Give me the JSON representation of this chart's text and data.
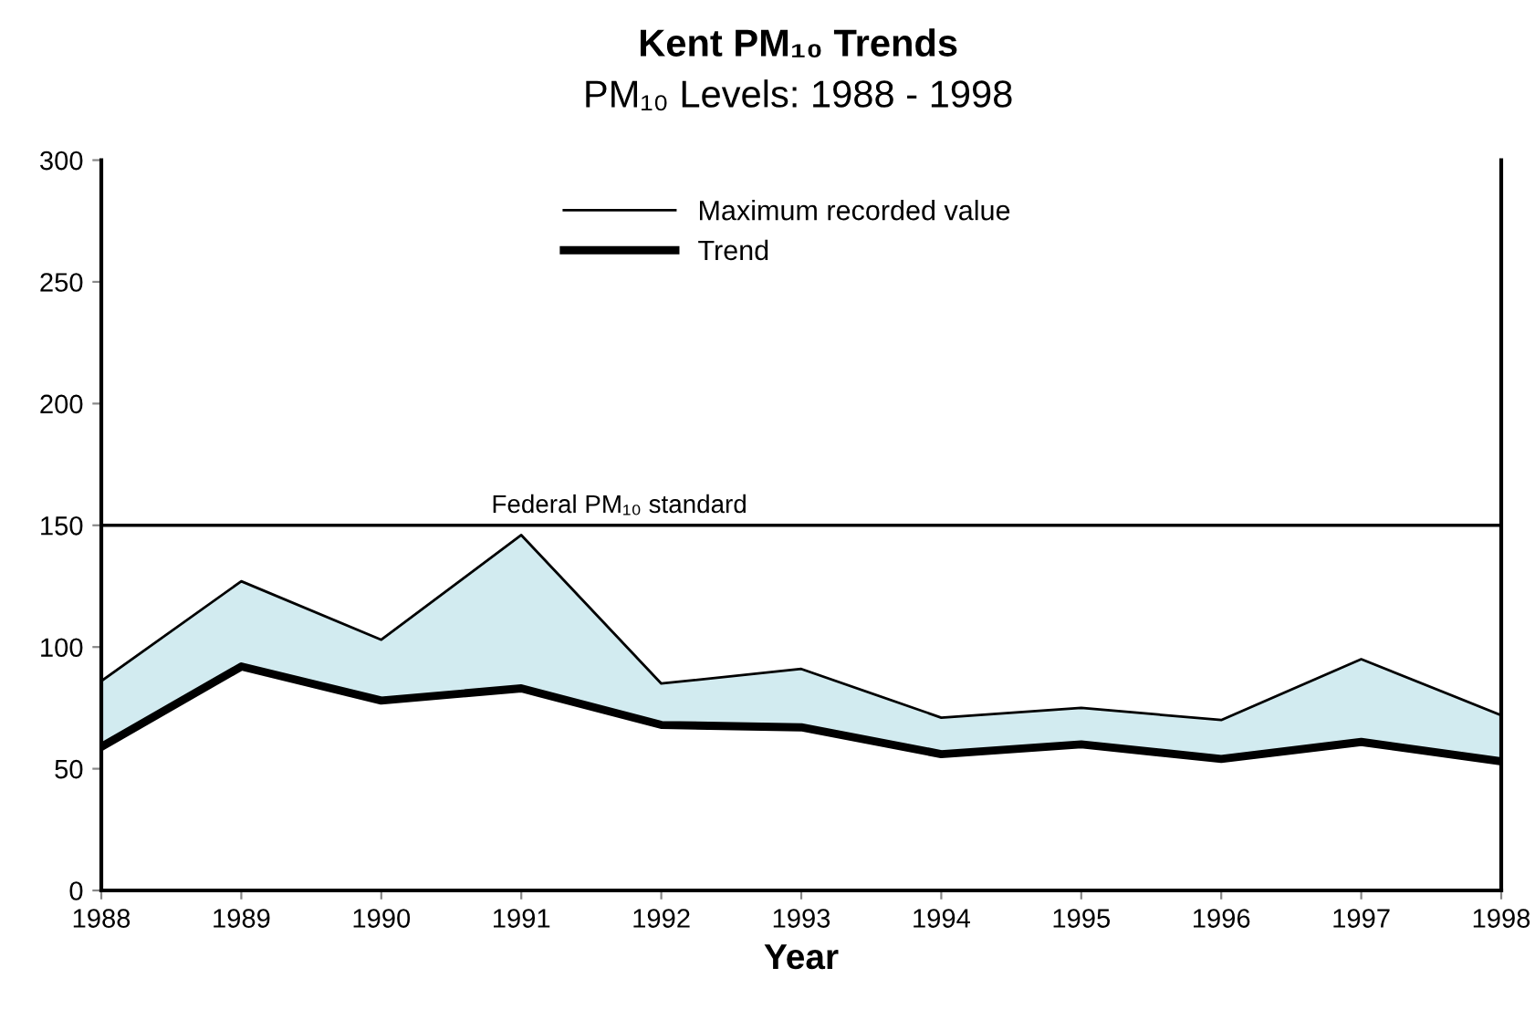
{
  "chart_data": {
    "type": "line",
    "title": "Kent PM₁₀ Trends",
    "subtitle": "PM₁₀ Levels: 1988 - 1998",
    "xlabel": "Year",
    "x": [
      1988,
      1989,
      1990,
      1991,
      1992,
      1993,
      1994,
      1995,
      1996,
      1997,
      1998
    ],
    "series": [
      {
        "name": "Maximum recorded value",
        "color": "#000000",
        "values": [
          86,
          127,
          103,
          146,
          85,
          91,
          71,
          75,
          70,
          95,
          72
        ],
        "lower": [
          59,
          92,
          78,
          83,
          68,
          67,
          56,
          60,
          54,
          61,
          53
        ],
        "upper": [
          86,
          127,
          103,
          146,
          85,
          91,
          71,
          75,
          70,
          95,
          72
        ]
      },
      {
        "name": "Trend",
        "color": "#000000",
        "values": [
          59,
          92,
          78,
          83,
          68,
          67,
          56,
          60,
          54,
          61,
          53
        ]
      }
    ],
    "xlim": [
      1988,
      1998
    ],
    "xticks": [
      1988,
      1989,
      1990,
      1991,
      1992,
      1993,
      1994,
      1995,
      1996,
      1997,
      1998
    ],
    "ylim": [
      0,
      300
    ],
    "yticks": [
      0,
      50,
      100,
      150,
      200,
      250,
      300
    ],
    "ref_lines": [
      {
        "axis": "y",
        "value": 150,
        "label": "Federal PM₁₀ standard",
        "color": "#000000"
      }
    ],
    "grid": false,
    "legend": "top",
    "marker": "none",
    "line_style": "solid"
  }
}
